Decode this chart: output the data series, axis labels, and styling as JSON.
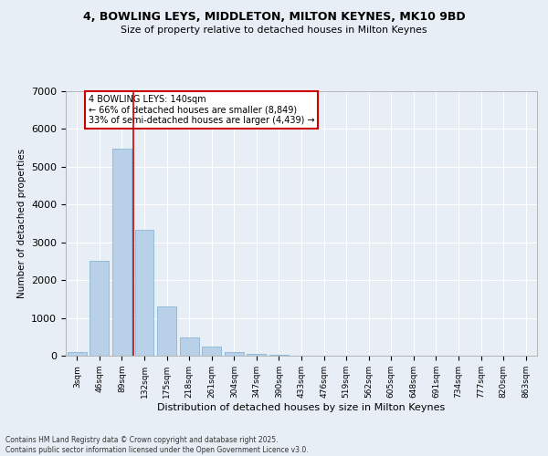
{
  "title_line1": "4, BOWLING LEYS, MIDDLETON, MILTON KEYNES, MK10 9BD",
  "title_line2": "Size of property relative to detached houses in Milton Keynes",
  "xlabel": "Distribution of detached houses by size in Milton Keynes",
  "ylabel": "Number of detached properties",
  "categories": [
    "3sqm",
    "46sqm",
    "89sqm",
    "132sqm",
    "175sqm",
    "218sqm",
    "261sqm",
    "304sqm",
    "347sqm",
    "390sqm",
    "433sqm",
    "476sqm",
    "519sqm",
    "562sqm",
    "605sqm",
    "648sqm",
    "691sqm",
    "734sqm",
    "777sqm",
    "820sqm",
    "863sqm"
  ],
  "values": [
    90,
    2500,
    5480,
    3340,
    1300,
    480,
    230,
    100,
    55,
    35,
    0,
    0,
    0,
    0,
    0,
    0,
    0,
    0,
    0,
    0,
    0
  ],
  "bar_color": "#b8d0e8",
  "bar_edge_color": "#7aafd4",
  "vline_color": "#cc0000",
  "vline_pos": 2.5,
  "annotation_text": "4 BOWLING LEYS: 140sqm\n← 66% of detached houses are smaller (8,849)\n33% of semi-detached houses are larger (4,439) →",
  "annotation_text_color": "black",
  "ylim": [
    0,
    7000
  ],
  "yticks": [
    0,
    1000,
    2000,
    3000,
    4000,
    5000,
    6000,
    7000
  ],
  "background_color": "#e8eef5",
  "grid_color": "#ffffff",
  "footnote": "Contains HM Land Registry data © Crown copyright and database right 2025.\nContains public sector information licensed under the Open Government Licence v3.0."
}
